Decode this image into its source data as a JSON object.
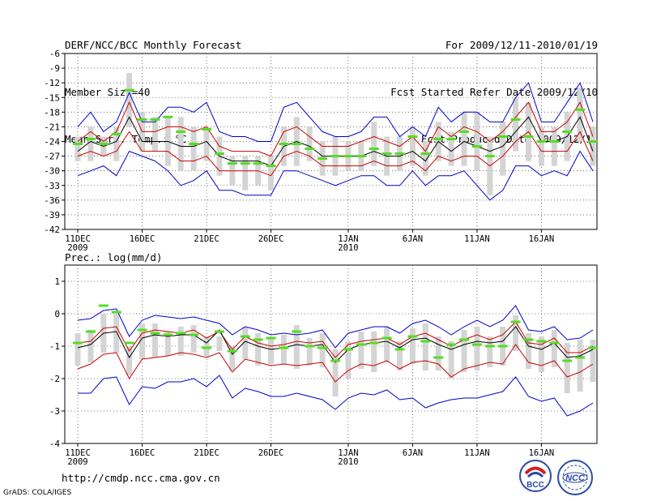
{
  "header": {
    "left": [
      "DERF/NCC/BCC Monthly Forecast",
      "Member Size=40",
      "Mean Surf. Temp.: °C"
    ],
    "right": [
      "For 2009/12/11-2010/01/19",
      "Fcst Started Refer Date 2009/12/10",
      "Fcst Produced Date 2009/12/11"
    ]
  },
  "footer": {
    "url": "http://cmdp.ncc.cma.gov.cn",
    "credit": "GrADS: COLA/IGES",
    "logo_bcc": "BCC",
    "logo_ncc": "NCC"
  },
  "colors": {
    "ensemble_box": "#d4d4d4",
    "mean_line": "#000000",
    "std_line": "#cc0000",
    "extreme_line": "#0000cc",
    "observed_bar": "#55dd22",
    "grid": "#555555"
  },
  "chart_data": [
    {
      "type": "line",
      "title": "Mean Surf. Temp.: °C",
      "ylabel": "Mean Surf. Temp. (°C)",
      "ylim": [
        -42,
        -6
      ],
      "yticks": [
        -6,
        -9,
        -12,
        -15,
        -18,
        -21,
        -24,
        -27,
        -30,
        -33,
        -36,
        -39,
        -42
      ],
      "x_tick_labels": [
        "11DEC",
        "16DEC",
        "21DEC",
        "26DEC",
        "1JAN",
        "6JAN",
        "11JAN",
        "16JAN"
      ],
      "x_tick_days": [
        0,
        5,
        10,
        15,
        21,
        26,
        31,
        36
      ],
      "year_labels": [
        {
          "day": 0,
          "label": "2009"
        },
        {
          "day": 21,
          "label": "2010"
        }
      ],
      "series": [
        {
          "name": "ensemble max",
          "values": [
            -21,
            -18,
            -22,
            -20,
            -14,
            -20,
            -20,
            -17,
            -17,
            -18,
            -16,
            -22,
            -23,
            -23,
            -24,
            -24,
            -17,
            -16,
            -19,
            -22,
            -23,
            -23,
            -22,
            -19,
            -19,
            -23,
            -21,
            -23,
            -17,
            -20,
            -18,
            -18,
            -20,
            -20,
            -15,
            -12,
            -20,
            -20,
            -16,
            -12,
            -20
          ]
        },
        {
          "name": "mean+1sd",
          "values": [
            -24,
            -22,
            -24,
            -22,
            -16,
            -22,
            -22,
            -21,
            -21,
            -22,
            -21,
            -25,
            -26,
            -26,
            -26,
            -27,
            -22,
            -21,
            -23,
            -25,
            -25,
            -25,
            -24,
            -23,
            -24,
            -25,
            -23,
            -26,
            -21,
            -23,
            -21,
            -22,
            -24,
            -22,
            -19,
            -16,
            -22,
            -22,
            -20,
            -16,
            -23
          ]
        },
        {
          "name": "ensemble mean",
          "values": [
            -26,
            -24,
            -25,
            -24,
            -19,
            -24,
            -24,
            -24,
            -25,
            -25,
            -24,
            -27,
            -28,
            -28,
            -28,
            -29,
            -25,
            -24,
            -25,
            -27,
            -27,
            -27,
            -27,
            -26,
            -27,
            -27,
            -26,
            -28,
            -24,
            -26,
            -24,
            -25,
            -26,
            -25,
            -22,
            -19,
            -24,
            -24,
            -23,
            -19,
            -26
          ]
        },
        {
          "name": "mean-1sd",
          "values": [
            -27,
            -26,
            -27,
            -26,
            -22,
            -26,
            -26,
            -26,
            -28,
            -28,
            -27,
            -30,
            -30,
            -30,
            -30,
            -31,
            -27,
            -26,
            -27,
            -29,
            -29,
            -29,
            -29,
            -28,
            -29,
            -29,
            -28,
            -30,
            -27,
            -28,
            -27,
            -27,
            -29,
            -27,
            -24,
            -22,
            -26,
            -26,
            -26,
            -22,
            -28
          ]
        },
        {
          "name": "ensemble min",
          "values": [
            -31,
            -30,
            -29,
            -31,
            -26,
            -27,
            -28,
            -30,
            -33,
            -32,
            -30,
            -34,
            -34,
            -35,
            -35,
            -35,
            -30,
            -30,
            -31,
            -32,
            -33,
            -32,
            -31,
            -31,
            -33,
            -33,
            -30,
            -33,
            -31,
            -31,
            -30,
            -33,
            -36,
            -34,
            -29,
            -29,
            -31,
            -30,
            -31,
            -26,
            -30
          ]
        },
        {
          "name": "box top",
          "values": [
            -23,
            -21,
            -23,
            -21,
            -10,
            -18,
            -19,
            -19,
            -19,
            -21,
            -21,
            -23,
            -27,
            -27,
            -27,
            -27,
            -21,
            -19,
            -21,
            -24,
            -23,
            -24,
            -24,
            -20,
            -23,
            -23,
            -21,
            -24,
            -20,
            -22,
            -18,
            -18,
            -23,
            -20,
            -15,
            -16,
            -21,
            -21,
            -18,
            -13,
            -21
          ]
        },
        {
          "name": "box bottom",
          "values": [
            -28,
            -28,
            -27,
            -28,
            -21,
            -26,
            -26,
            -29,
            -30,
            -30,
            -28,
            -31,
            -33,
            -34,
            -33,
            -34,
            -29,
            -29,
            -28,
            -31,
            -31,
            -30,
            -30,
            -29,
            -31,
            -30,
            -29,
            -31,
            -28,
            -29,
            -29,
            -30,
            -35,
            -31,
            -26,
            -28,
            -29,
            -29,
            -28,
            -24,
            -29
          ]
        },
        {
          "name": "observed",
          "values": [
            -24.5,
            -23.5,
            -24.5,
            -22.5,
            -13.5,
            -19.5,
            -19.5,
            -19.0,
            -22.0,
            -24.5,
            -21.5,
            -26.5,
            -28.5,
            -28.5,
            -28.5,
            -29.0,
            -24.5,
            -24.5,
            -25.5,
            -27.5,
            -27.0,
            -27.0,
            -27.0,
            -25.5,
            -26.5,
            -26.5,
            -23.0,
            -26.5,
            -23.5,
            -23.5,
            -22.0,
            -25.0,
            -27.0,
            -23.0,
            -19.5,
            -23.0,
            -24.0,
            -24.0,
            -22.0,
            -17.5,
            -24.0
          ]
        }
      ]
    },
    {
      "type": "line",
      "title": "Prec.: log(mm/d)",
      "ylabel": "Prec. log(mm/d)",
      "ylim": [
        -4,
        1.5
      ],
      "yticks": [
        1,
        0,
        -1,
        -2,
        -3,
        -4
      ],
      "x_tick_labels": [
        "11DEC",
        "16DEC",
        "21DEC",
        "26DEC",
        "1JAN",
        "6JAN",
        "11JAN",
        "16JAN"
      ],
      "x_tick_days": [
        0,
        5,
        10,
        15,
        21,
        26,
        31,
        36
      ],
      "year_labels": [
        {
          "day": 0,
          "label": "2009"
        },
        {
          "day": 21,
          "label": "2010"
        }
      ],
      "series": [
        {
          "name": "ensemble max",
          "values": [
            -0.2,
            -0.15,
            0.1,
            0.15,
            -0.7,
            -0.2,
            -0.05,
            -0.1,
            -0.15,
            -0.1,
            -0.2,
            -0.3,
            -0.65,
            -0.4,
            -0.5,
            -0.65,
            -0.6,
            -0.65,
            -0.6,
            -0.5,
            -1.05,
            -0.6,
            -0.5,
            -0.4,
            -0.4,
            -0.6,
            -0.3,
            -0.2,
            -0.4,
            -0.65,
            -0.4,
            -0.2,
            -0.4,
            -0.2,
            0.25,
            -0.5,
            -0.55,
            -0.4,
            -0.8,
            -0.75,
            -0.5
          ]
        },
        {
          "name": "mean+1sd",
          "values": [
            -0.9,
            -0.85,
            -0.45,
            -0.4,
            -1.15,
            -0.6,
            -0.5,
            -0.55,
            -0.6,
            -0.5,
            -0.75,
            -0.55,
            -1.1,
            -0.7,
            -0.9,
            -1.0,
            -0.95,
            -0.85,
            -0.9,
            -0.85,
            -1.35,
            -0.95,
            -0.85,
            -0.8,
            -0.75,
            -0.95,
            -0.7,
            -0.6,
            -0.8,
            -1.0,
            -0.8,
            -0.65,
            -0.8,
            -0.65,
            -0.25,
            -0.9,
            -0.95,
            -0.75,
            -1.2,
            -1.2,
            -1.0
          ]
        },
        {
          "name": "ensemble mean",
          "values": [
            -1.05,
            -0.95,
            -0.6,
            -0.55,
            -1.35,
            -0.75,
            -0.65,
            -0.7,
            -0.65,
            -0.65,
            -0.9,
            -0.5,
            -1.25,
            -0.85,
            -1.0,
            -1.1,
            -1.05,
            -0.95,
            -1.0,
            -0.95,
            -1.5,
            -1.1,
            -0.95,
            -0.9,
            -0.85,
            -1.05,
            -0.8,
            -0.75,
            -0.95,
            -1.1,
            -0.95,
            -0.85,
            -0.9,
            -0.85,
            -0.4,
            -1.0,
            -1.1,
            -0.9,
            -1.35,
            -1.3,
            -1.1
          ]
        },
        {
          "name": "mean-1sd",
          "values": [
            -1.7,
            -1.55,
            -1.25,
            -1.2,
            -2.0,
            -1.4,
            -1.35,
            -1.3,
            -1.2,
            -1.25,
            -1.35,
            -1.2,
            -1.8,
            -1.4,
            -1.5,
            -1.6,
            -1.55,
            -1.6,
            -1.55,
            -1.5,
            -2.1,
            -1.75,
            -1.55,
            -1.6,
            -1.45,
            -1.7,
            -1.5,
            -1.45,
            -1.55,
            -1.95,
            -1.7,
            -1.6,
            -1.5,
            -1.55,
            -0.95,
            -1.5,
            -1.6,
            -1.45,
            -1.95,
            -1.8,
            -1.55
          ]
        },
        {
          "name": "ensemble min",
          "values": [
            -2.45,
            -2.45,
            -2.0,
            -1.95,
            -2.8,
            -2.25,
            -2.3,
            -2.1,
            -2.1,
            -2.0,
            -2.25,
            -1.9,
            -2.6,
            -2.3,
            -2.4,
            -2.55,
            -2.55,
            -2.45,
            -2.55,
            -2.65,
            -2.95,
            -2.6,
            -2.45,
            -2.5,
            -2.35,
            -2.65,
            -2.6,
            -2.9,
            -2.75,
            -2.65,
            -2.6,
            -2.6,
            -2.5,
            -2.4,
            -1.95,
            -2.55,
            -2.7,
            -2.6,
            -3.15,
            -3.0,
            -2.75
          ]
        },
        {
          "name": "box top",
          "values": [
            -0.6,
            -0.5,
            0.0,
            0.0,
            -1.0,
            -0.3,
            -0.3,
            -0.55,
            -0.4,
            -0.35,
            -0.7,
            -0.7,
            -1.0,
            -0.4,
            -0.6,
            -0.75,
            -0.65,
            -0.35,
            -0.75,
            -0.6,
            -1.1,
            -0.85,
            -0.55,
            -0.55,
            -0.4,
            -0.85,
            -0.45,
            -0.3,
            -0.7,
            -0.85,
            -0.5,
            -0.4,
            -0.7,
            -0.4,
            -0.05,
            -0.6,
            -0.7,
            -0.5,
            -0.9,
            -0.8,
            -0.8
          ]
        },
        {
          "name": "box bottom",
          "values": [
            -1.6,
            -1.5,
            -1.2,
            -1.2,
            -1.9,
            -1.4,
            -1.35,
            -1.3,
            -1.3,
            -1.2,
            -1.3,
            -1.15,
            -1.75,
            -1.4,
            -1.6,
            -1.55,
            -1.55,
            -1.7,
            -1.6,
            -1.65,
            -2.55,
            -2.0,
            -1.7,
            -1.8,
            -1.5,
            -1.75,
            -1.55,
            -1.75,
            -1.75,
            -2.0,
            -1.8,
            -1.75,
            -1.65,
            -1.6,
            -1.15,
            -1.7,
            -1.8,
            -1.65,
            -2.45,
            -2.4,
            -2.1
          ]
        },
        {
          "name": "observed",
          "values": [
            -0.9,
            -0.55,
            0.25,
            0.05,
            -0.9,
            -0.5,
            -0.6,
            -0.65,
            -0.6,
            -0.65,
            -1.05,
            -0.55,
            -1.15,
            -0.7,
            -0.8,
            -0.75,
            -1.05,
            -0.55,
            -1.0,
            -1.05,
            -1.45,
            -1.1,
            -0.95,
            -0.9,
            -0.75,
            -1.1,
            -0.7,
            -0.85,
            -1.35,
            -0.95,
            -0.8,
            -0.95,
            -1.0,
            -1.0,
            -0.25,
            -0.8,
            -0.85,
            -0.9,
            -1.45,
            -1.35,
            -1.05
          ]
        }
      ]
    }
  ]
}
